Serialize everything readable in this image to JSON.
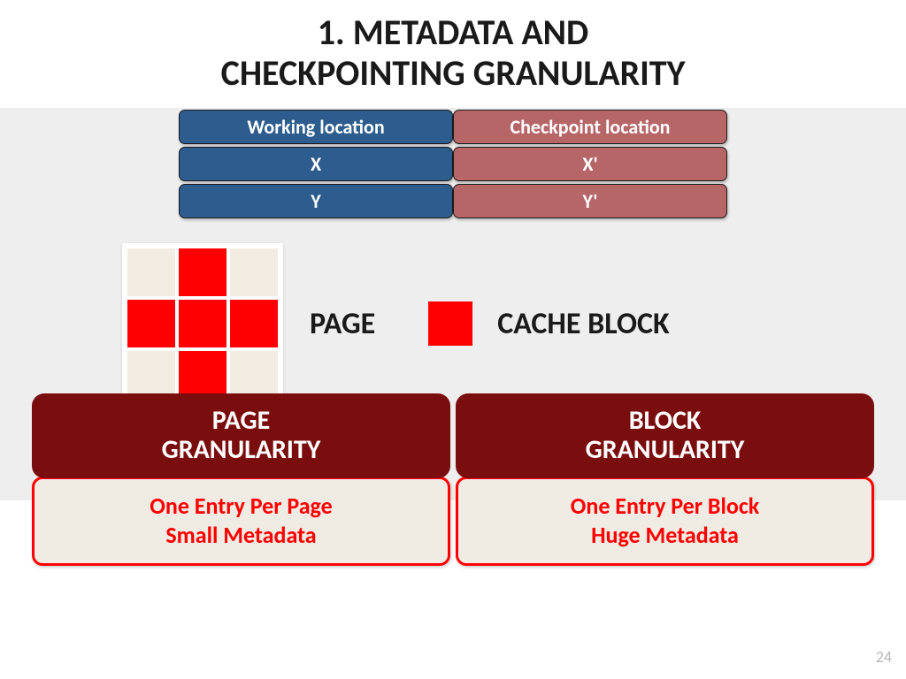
{
  "title_line1": "1. METADATA AND",
  "title_line2": "CHECKPOINTING GRANULARITY",
  "colors": {
    "working_bg": "#2c5d8e",
    "checkpoint_bg": "#b76668",
    "gran_head_bg": "#7a0d0d",
    "accent_red": "#ff0000",
    "cream": "#f0ece3",
    "gray_band": "#eeeeee"
  },
  "table": {
    "left": {
      "header": "Working location",
      "rows": [
        "X",
        "Y"
      ]
    },
    "right": {
      "header": "Checkpoint location",
      "rows": [
        "X'",
        "Y'"
      ]
    }
  },
  "page_grid": {
    "cells": [
      0,
      1,
      0,
      1,
      1,
      1,
      0,
      1,
      0
    ]
  },
  "labels": {
    "page": "PAGE",
    "cache_block": "CACHE BLOCK"
  },
  "granularity": {
    "left": {
      "head_line1": "PAGE",
      "head_line2": "GRANULARITY",
      "sub_line1": "One Entry Per Page",
      "sub_line2": "Small Metadata"
    },
    "right": {
      "head_line1": "BLOCK",
      "head_line2": "GRANULARITY",
      "sub_line1": "One Entry Per Block",
      "sub_line2": "Huge Metadata"
    }
  },
  "page_number": "24"
}
